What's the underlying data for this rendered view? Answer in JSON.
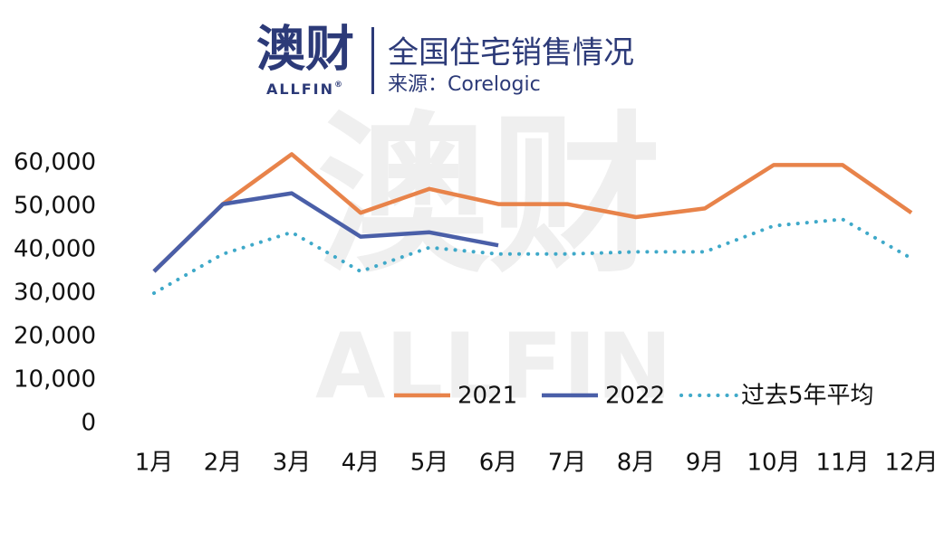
{
  "logo": {
    "name": "澳财",
    "brand": "ALLFIN",
    "mark": "®"
  },
  "watermark": {
    "name": "澳财",
    "brand": "ALLFIN"
  },
  "chart_data": {
    "type": "line",
    "title": "全国住宅销售情况",
    "subtitle": "来源：Corelogic",
    "categories": [
      "1月",
      "2月",
      "3月",
      "4月",
      "5月",
      "6月",
      "7月",
      "8月",
      "9月",
      "10月",
      "11月",
      "12月"
    ],
    "series": [
      {
        "name": "2021",
        "color": "#e8834a",
        "style": "solid",
        "values": [
          35000,
          50500,
          62000,
          48500,
          54000,
          50500,
          50500,
          47500,
          49500,
          59500,
          59500,
          48500
        ]
      },
      {
        "name": "2022",
        "color": "#4a5fa8",
        "style": "solid",
        "values": [
          35000,
          50500,
          53000,
          43000,
          44000,
          41000,
          null,
          null,
          null,
          null,
          null,
          null
        ]
      },
      {
        "name": "过去5年平均",
        "color": "#3fa9c9",
        "style": "dotted",
        "values": [
          30000,
          39000,
          44000,
          35000,
          40500,
          39000,
          39000,
          39500,
          39500,
          45500,
          47000,
          38000
        ]
      }
    ],
    "ylim": [
      0,
      65000
    ],
    "yticks": [
      0,
      {
        "value": 10000,
        "label": "10,000"
      },
      {
        "value": 20000,
        "label": "20,000"
      },
      {
        "value": 30000,
        "label": "30,000"
      },
      {
        "value": 40000,
        "label": "40,000"
      },
      {
        "value": 50000,
        "label": "50,000"
      },
      {
        "value": 60000,
        "label": "60,000"
      }
    ],
    "grid": false,
    "legend": "bottom-right"
  }
}
